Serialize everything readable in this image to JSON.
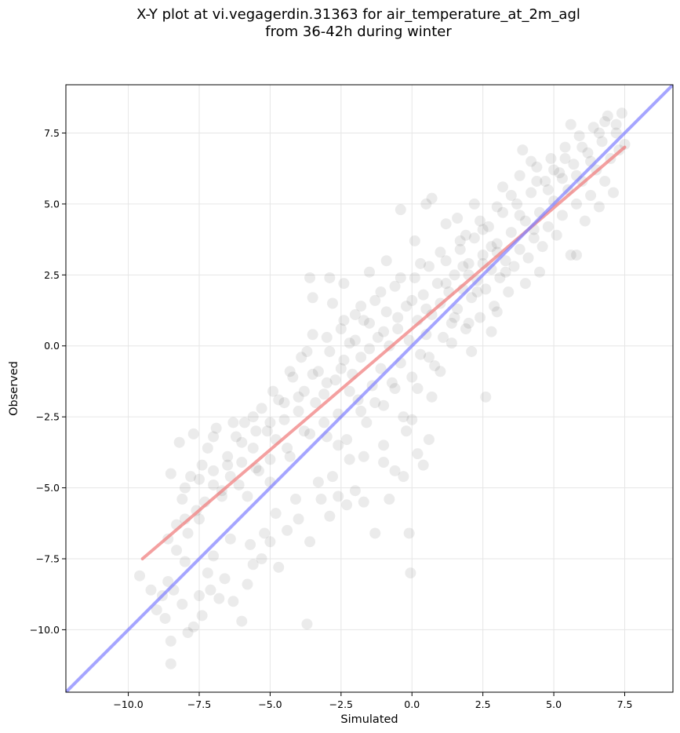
{
  "chart_data": {
    "type": "scatter",
    "title_lines": [
      "X-Y plot at vi.vegagerdin.31363 for air_temperature_at_2m_agl",
      "from 36-42h during winter"
    ],
    "xlabel": "Simulated",
    "ylabel": "Observed",
    "xlim": [
      -12.2,
      9.2
    ],
    "ylim": [
      -12.2,
      9.2
    ],
    "x_ticks": [
      -10.0,
      -7.5,
      -5.0,
      -2.5,
      0.0,
      2.5,
      5.0,
      7.5
    ],
    "y_ticks": [
      -10.0,
      -7.5,
      -5.0,
      -2.5,
      0.0,
      2.5,
      5.0,
      7.5
    ],
    "tick_labels": [
      "−10.0",
      "−7.5",
      "−5.0",
      "−2.5",
      "0.0",
      "2.5",
      "5.0",
      "7.5"
    ],
    "grid": true,
    "point_color": "#000000",
    "point_alpha": 0.08,
    "regression_line": {
      "color": "#f08080",
      "x": [
        -9.5,
        7.5
      ],
      "y": [
        -7.5,
        7.0
      ]
    },
    "identity_line": {
      "color": "#7f7fff",
      "x": [
        -12.2,
        9.2
      ],
      "y": [
        -12.2,
        9.2
      ]
    },
    "series": [
      {
        "points": [
          [
            -9.6,
            -8.1
          ],
          [
            -9.2,
            -8.6
          ],
          [
            -9.0,
            -9.3
          ],
          [
            -8.8,
            -8.8
          ],
          [
            -8.7,
            -9.6
          ],
          [
            -8.6,
            -8.3
          ],
          [
            -8.5,
            -11.2
          ],
          [
            -8.5,
            -10.4
          ],
          [
            -8.4,
            -8.6
          ],
          [
            -8.3,
            -7.2
          ],
          [
            -8.1,
            -9.1
          ],
          [
            -8.0,
            -7.6
          ],
          [
            -7.9,
            -10.1
          ],
          [
            -7.7,
            -9.9
          ],
          [
            -7.5,
            -8.8
          ],
          [
            -7.4,
            -9.5
          ],
          [
            -7.2,
            -8.0
          ],
          [
            -7.1,
            -8.6
          ],
          [
            -6.8,
            -8.9
          ],
          [
            -6.6,
            -8.2
          ],
          [
            -6.3,
            -9.0
          ],
          [
            -6.0,
            -9.7
          ],
          [
            -5.8,
            -8.4
          ],
          [
            -5.6,
            -7.7
          ],
          [
            -5.3,
            -7.5
          ],
          [
            -5.0,
            -6.9
          ],
          [
            -4.7,
            -7.8
          ],
          [
            -4.4,
            -6.5
          ],
          [
            -4.0,
            -6.1
          ],
          [
            -3.6,
            -6.9
          ],
          [
            -3.7,
            -9.8
          ],
          [
            -3.2,
            -5.4
          ],
          [
            -2.9,
            -6.0
          ],
          [
            -2.6,
            -5.3
          ],
          [
            -2.3,
            -5.6
          ],
          [
            -2.0,
            -5.1
          ],
          [
            -1.7,
            -5.5
          ],
          [
            -1.3,
            -6.6
          ],
          [
            -1.0,
            -4.1
          ],
          [
            -0.8,
            -5.4
          ],
          [
            -0.6,
            -4.4
          ],
          [
            -0.3,
            -4.6
          ],
          [
            -0.1,
            -6.6
          ],
          [
            -0.05,
            -8.0
          ],
          [
            0.2,
            -3.8
          ],
          [
            0.4,
            -4.2
          ],
          [
            0.6,
            -3.3
          ],
          [
            0.7,
            -1.8
          ],
          [
            -8.6,
            -6.8
          ],
          [
            -8.3,
            -6.3
          ],
          [
            -8.1,
            -5.4
          ],
          [
            -7.8,
            -4.6
          ],
          [
            -7.6,
            -5.8
          ],
          [
            -7.4,
            -4.2
          ],
          [
            -7.2,
            -3.6
          ],
          [
            -7.0,
            -4.9
          ],
          [
            -6.9,
            -2.9
          ],
          [
            -6.7,
            -5.1
          ],
          [
            -6.5,
            -3.9
          ],
          [
            -6.4,
            -4.6
          ],
          [
            -6.2,
            -3.2
          ],
          [
            -6.0,
            -4.1
          ],
          [
            -5.9,
            -2.7
          ],
          [
            -5.8,
            -5.3
          ],
          [
            -5.6,
            -3.6
          ],
          [
            -5.4,
            -4.4
          ],
          [
            -5.3,
            -2.2
          ],
          [
            -5.1,
            -3.0
          ],
          [
            -5.0,
            -4.8
          ],
          [
            -4.8,
            -3.3
          ],
          [
            -4.7,
            -1.9
          ],
          [
            -4.5,
            -2.6
          ],
          [
            -4.3,
            -3.9
          ],
          [
            -4.2,
            -1.1
          ],
          [
            -4.0,
            -2.3
          ],
          [
            -3.9,
            -0.4
          ],
          [
            -3.8,
            -1.6
          ],
          [
            -3.6,
            -3.1
          ],
          [
            -3.5,
            0.4
          ],
          [
            -3.4,
            -2.0
          ],
          [
            -3.3,
            -0.9
          ],
          [
            -3.1,
            -1.7
          ],
          [
            -3.0,
            -3.2
          ],
          [
            -2.9,
            -0.2
          ],
          [
            -2.8,
            1.5
          ],
          [
            -2.7,
            -1.2
          ],
          [
            -2.6,
            -2.4
          ],
          [
            -2.5,
            0.6
          ],
          [
            -2.4,
            -0.5
          ],
          [
            -2.3,
            -3.3
          ],
          [
            -2.2,
            0.1
          ],
          [
            -2.1,
            -1.0
          ],
          [
            -2.0,
            1.1
          ],
          [
            -1.9,
            -1.9
          ],
          [
            -1.8,
            -0.4
          ],
          [
            -1.7,
            0.9
          ],
          [
            -1.6,
            -2.7
          ],
          [
            -1.5,
            -0.1
          ],
          [
            -1.4,
            -1.4
          ],
          [
            -1.3,
            1.6
          ],
          [
            -1.2,
            0.3
          ],
          [
            -1.1,
            -0.8
          ],
          [
            -1.0,
            -2.1
          ],
          [
            -0.9,
            1.2
          ],
          [
            -0.8,
            0.0
          ],
          [
            -0.7,
            -1.3
          ],
          [
            -0.6,
            2.1
          ],
          [
            -0.5,
            0.6
          ],
          [
            -0.4,
            -0.6
          ],
          [
            -0.3,
            -2.5
          ],
          [
            -0.2,
            1.4
          ],
          [
            -0.1,
            0.2
          ],
          [
            0.0,
            -1.1
          ],
          [
            0.1,
            2.4
          ],
          [
            0.2,
            0.9
          ],
          [
            0.3,
            -0.3
          ],
          [
            0.4,
            1.8
          ],
          [
            0.5,
            0.4
          ],
          [
            0.6,
            2.8
          ],
          [
            0.7,
            1.1
          ],
          [
            0.8,
            -0.7
          ],
          [
            0.9,
            2.2
          ],
          [
            1.0,
            1.5
          ],
          [
            1.1,
            0.3
          ],
          [
            1.2,
            3.0
          ],
          [
            1.3,
            1.9
          ],
          [
            1.4,
            0.8
          ],
          [
            1.5,
            2.5
          ],
          [
            1.6,
            1.3
          ],
          [
            1.7,
            3.4
          ],
          [
            1.8,
            2.0
          ],
          [
            1.9,
            0.6
          ],
          [
            2.0,
            2.9
          ],
          [
            2.1,
            1.7
          ],
          [
            2.2,
            3.8
          ],
          [
            2.3,
            2.3
          ],
          [
            2.4,
            1.0
          ],
          [
            2.5,
            3.2
          ],
          [
            2.6,
            2.0
          ],
          [
            2.7,
            4.2
          ],
          [
            2.8,
            2.7
          ],
          [
            2.9,
            1.4
          ],
          [
            3.0,
            3.6
          ],
          [
            3.1,
            2.4
          ],
          [
            3.2,
            4.7
          ],
          [
            3.3,
            3.0
          ],
          [
            3.4,
            1.9
          ],
          [
            3.5,
            4.0
          ],
          [
            3.6,
            2.8
          ],
          [
            3.7,
            5.0
          ],
          [
            3.8,
            3.4
          ],
          [
            3.9,
            6.9
          ],
          [
            4.0,
            4.4
          ],
          [
            4.1,
            3.1
          ],
          [
            4.2,
            5.4
          ],
          [
            4.3,
            3.8
          ],
          [
            4.4,
            6.3
          ],
          [
            4.5,
            4.7
          ],
          [
            4.6,
            3.5
          ],
          [
            4.7,
            5.8
          ],
          [
            4.8,
            4.2
          ],
          [
            4.9,
            6.6
          ],
          [
            5.0,
            5.1
          ],
          [
            5.1,
            3.9
          ],
          [
            5.2,
            6.1
          ],
          [
            5.3,
            4.6
          ],
          [
            5.4,
            7.0
          ],
          [
            5.5,
            5.5
          ],
          [
            5.6,
            3.2
          ],
          [
            5.7,
            6.4
          ],
          [
            5.8,
            5.0
          ],
          [
            5.9,
            7.4
          ],
          [
            6.0,
            5.8
          ],
          [
            6.1,
            4.4
          ],
          [
            6.2,
            6.8
          ],
          [
            6.3,
            5.3
          ],
          [
            6.4,
            7.7
          ],
          [
            6.5,
            6.2
          ],
          [
            6.6,
            4.9
          ],
          [
            6.7,
            7.2
          ],
          [
            6.8,
            5.8
          ],
          [
            6.9,
            8.1
          ],
          [
            7.0,
            6.6
          ],
          [
            7.1,
            5.4
          ],
          [
            7.2,
            7.5
          ],
          [
            7.3,
            6.9
          ],
          [
            7.4,
            8.2
          ],
          [
            7.5,
            7.1
          ],
          [
            -3.6,
            2.4
          ],
          [
            -3.5,
            1.7
          ],
          [
            -2.9,
            2.4
          ],
          [
            -2.4,
            2.2
          ],
          [
            -1.5,
            2.6
          ],
          [
            -0.9,
            3.0
          ],
          [
            -0.4,
            4.8
          ],
          [
            0.5,
            5.0
          ],
          [
            0.7,
            5.2
          ],
          [
            1.2,
            4.3
          ],
          [
            0.1,
            3.7
          ],
          [
            2.2,
            5.0
          ],
          [
            3.2,
            5.6
          ],
          [
            3.8,
            6.0
          ],
          [
            4.2,
            6.5
          ],
          [
            5.6,
            7.8
          ],
          [
            5.8,
            3.2
          ],
          [
            4.5,
            2.6
          ],
          [
            2.8,
            0.5
          ],
          [
            2.1,
            -0.2
          ],
          [
            1.0,
            -0.9
          ],
          [
            0.2,
            -1.5
          ],
          [
            -0.2,
            -3.0
          ],
          [
            -1.0,
            -3.5
          ],
          [
            -1.7,
            -3.9
          ],
          [
            -2.2,
            -4.0
          ],
          [
            -2.8,
            -4.6
          ],
          [
            -3.3,
            -4.8
          ],
          [
            -4.1,
            -5.4
          ],
          [
            -4.8,
            -5.9
          ],
          [
            -5.2,
            -6.6
          ],
          [
            -5.7,
            -7.0
          ],
          [
            -6.4,
            -6.8
          ],
          [
            -7.0,
            -7.4
          ],
          [
            -7.5,
            -6.1
          ],
          [
            -7.9,
            -6.6
          ],
          [
            2.6,
            -1.8
          ],
          [
            0.0,
            -2.6
          ],
          [
            -1.3,
            -2.0
          ],
          [
            -2.6,
            -3.5
          ],
          [
            1.6,
            4.5
          ],
          [
            1.9,
            3.9
          ],
          [
            2.4,
            4.4
          ],
          [
            3.0,
            4.9
          ],
          [
            3.5,
            5.3
          ],
          [
            4.4,
            5.8
          ],
          [
            5.0,
            6.2
          ],
          [
            5.4,
            6.6
          ],
          [
            6.0,
            7.0
          ],
          [
            6.6,
            7.5
          ],
          [
            6.8,
            7.9
          ],
          [
            7.2,
            7.8
          ],
          [
            4.0,
            2.2
          ],
          [
            3.0,
            1.2
          ],
          [
            2.0,
            0.8
          ],
          [
            1.4,
            0.1
          ],
          [
            0.6,
            -0.4
          ],
          [
            -0.6,
            -1.5
          ],
          [
            -1.8,
            -2.3
          ],
          [
            -2.2,
            -1.6
          ],
          [
            -3.1,
            -2.7
          ],
          [
            -3.8,
            -3.0
          ],
          [
            -4.4,
            -3.6
          ],
          [
            -5.0,
            -4.0
          ],
          [
            -5.5,
            -4.3
          ],
          [
            -6.1,
            -4.9
          ],
          [
            -6.7,
            -5.3
          ],
          [
            -7.3,
            -5.5
          ],
          [
            -8.0,
            -6.1
          ],
          [
            -7.0,
            -3.2
          ],
          [
            -6.3,
            -2.7
          ],
          [
            -5.6,
            -2.5
          ],
          [
            -4.9,
            -1.6
          ],
          [
            -4.3,
            -0.9
          ],
          [
            -3.7,
            -0.2
          ],
          [
            -3.0,
            0.3
          ],
          [
            -2.4,
            0.9
          ],
          [
            -1.8,
            1.4
          ],
          [
            -1.1,
            1.9
          ],
          [
            -0.4,
            2.4
          ],
          [
            0.3,
            2.9
          ],
          [
            1.0,
            3.3
          ],
          [
            1.7,
            3.7
          ],
          [
            2.5,
            4.1
          ],
          [
            1.5,
            1.0
          ],
          [
            2.0,
            2.5
          ],
          [
            2.5,
            2.9
          ],
          [
            3.0,
            3.3
          ],
          [
            1.2,
            2.2
          ],
          [
            1.8,
            2.8
          ],
          [
            2.3,
            1.9
          ],
          [
            2.8,
            3.5
          ],
          [
            3.3,
            2.6
          ],
          [
            3.8,
            4.6
          ],
          [
            4.3,
            4.1
          ],
          [
            4.8,
            5.5
          ],
          [
            5.3,
            5.9
          ],
          [
            5.8,
            6.0
          ],
          [
            6.3,
            6.5
          ],
          [
            -0.5,
            1.0
          ],
          [
            0.0,
            1.6
          ],
          [
            0.5,
            1.3
          ],
          [
            -1.0,
            0.5
          ],
          [
            -1.5,
            0.8
          ],
          [
            -2.0,
            0.2
          ],
          [
            -2.5,
            -0.8
          ],
          [
            -3.0,
            -1.3
          ],
          [
            -3.5,
            -1.0
          ],
          [
            -4.0,
            -1.8
          ],
          [
            -4.5,
            -2.0
          ],
          [
            -5.0,
            -2.7
          ],
          [
            -5.5,
            -3.0
          ],
          [
            -6.0,
            -3.4
          ],
          [
            -6.5,
            -4.2
          ],
          [
            -7.0,
            -4.4
          ],
          [
            -7.5,
            -4.7
          ],
          [
            -8.0,
            -5.0
          ],
          [
            -8.5,
            -4.5
          ],
          [
            -8.2,
            -3.4
          ],
          [
            -7.7,
            -3.1
          ]
        ]
      }
    ]
  }
}
